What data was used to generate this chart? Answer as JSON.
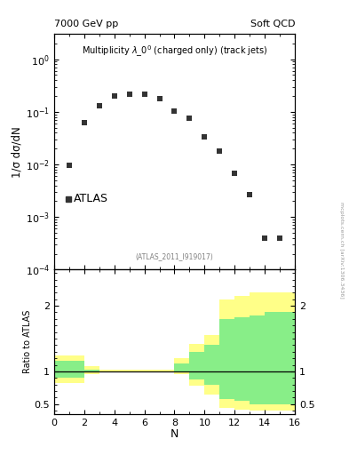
{
  "title_left": "7000 GeV pp",
  "title_right": "Soft QCD",
  "plot_label": "Multiplicity $\\lambda\\_0^0$ (charged only) (track jets)",
  "atlas_label": "ATLAS",
  "ref_label": "(ATLAS_2011_I919017)",
  "side_label": "mcplots.cern.ch [arXiv:1306.3436]",
  "xlabel": "N",
  "ylabel_main": "1/σ dσ/dN",
  "ylabel_ratio": "Ratio to ATLAS",
  "data_x": [
    1,
    2,
    3,
    4,
    5,
    6,
    7,
    8,
    9,
    10,
    11,
    12,
    13,
    14,
    15
  ],
  "data_y": [
    0.0098,
    0.063,
    0.13,
    0.2,
    0.22,
    0.22,
    0.18,
    0.105,
    0.075,
    0.033,
    0.018,
    0.0068,
    0.0027,
    0.0004,
    0.0004
  ],
  "data_color": "#333333",
  "data_marker": "s",
  "data_markersize": 4,
  "ylim_main": [
    0.0001,
    3.0
  ],
  "xlim": [
    0,
    16
  ],
  "ylim_ratio": [
    0.35,
    2.55
  ],
  "ratio_yticks": [
    0.5,
    1.0,
    2.0
  ],
  "ratio_yellow_x": [
    0,
    1,
    2,
    3,
    4,
    5,
    6,
    7,
    8,
    9,
    10,
    11,
    12,
    13,
    14,
    15
  ],
  "ratio_yellow_ylo": [
    0.82,
    0.82,
    0.96,
    0.98,
    0.98,
    0.98,
    0.98,
    0.98,
    0.96,
    0.78,
    0.65,
    0.45,
    0.42,
    0.4,
    0.4,
    0.4
  ],
  "ratio_yellow_yhi": [
    1.24,
    1.24,
    1.08,
    1.02,
    1.02,
    1.02,
    1.02,
    1.02,
    1.2,
    1.42,
    1.55,
    2.1,
    2.15,
    2.2,
    2.2,
    2.2
  ],
  "ratio_green_x": [
    0,
    1,
    2,
    3,
    4,
    5,
    6,
    7,
    8,
    9,
    10,
    11,
    12,
    13,
    14,
    15
  ],
  "ratio_green_ylo": [
    0.9,
    0.9,
    0.98,
    0.995,
    0.995,
    0.995,
    0.995,
    0.995,
    0.98,
    0.88,
    0.8,
    0.58,
    0.55,
    0.5,
    0.5,
    0.5
  ],
  "ratio_green_yhi": [
    1.16,
    1.16,
    1.03,
    1.005,
    1.005,
    1.005,
    1.005,
    1.005,
    1.12,
    1.3,
    1.4,
    1.8,
    1.82,
    1.85,
    1.9,
    1.9
  ],
  "green_color": "#88EE88",
  "yellow_color": "#FFFF88",
  "background_color": "#ffffff"
}
